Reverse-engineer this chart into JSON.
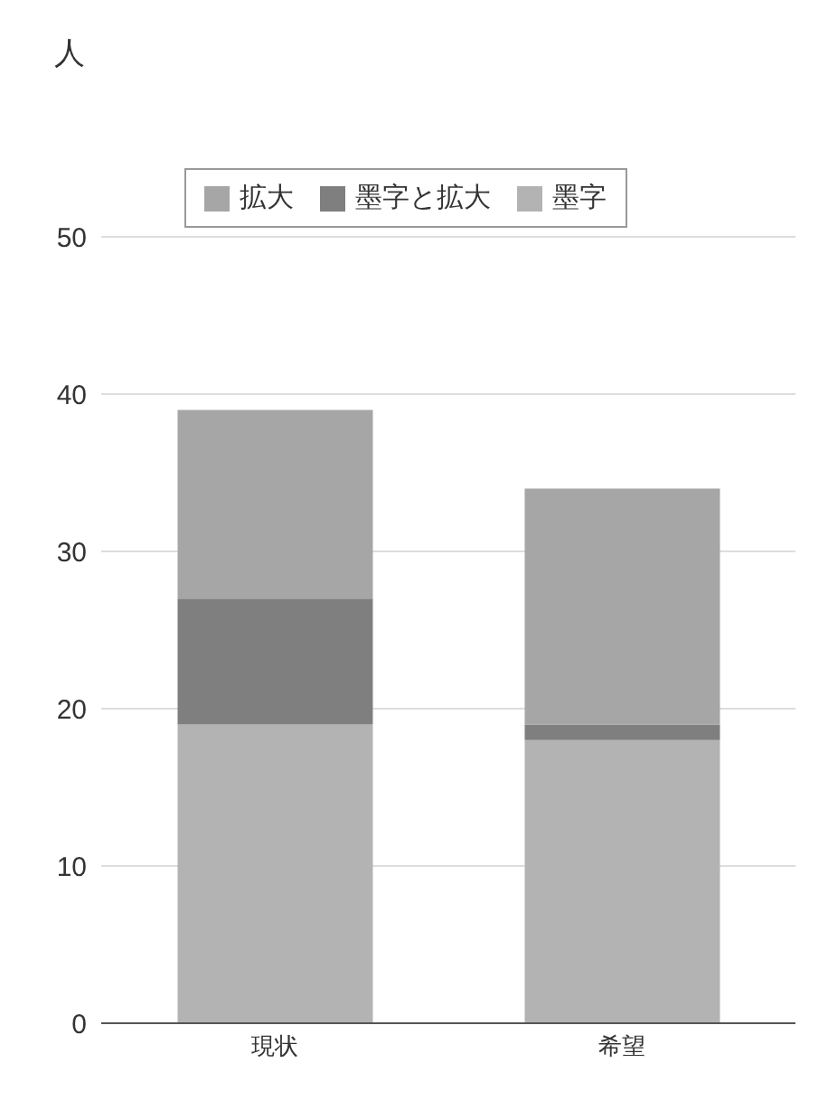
{
  "chart_data": {
    "type": "bar",
    "stacked": true,
    "ylabel": "人",
    "categories": [
      "現状",
      "希望"
    ],
    "series": [
      {
        "name": "墨字",
        "color": "#b3b3b3",
        "values": [
          19,
          18
        ]
      },
      {
        "name": "墨字と拡大",
        "color": "#7f7f7f",
        "values": [
          8,
          1
        ]
      },
      {
        "name": "拡大",
        "color": "#a6a6a6",
        "values": [
          12,
          15
        ]
      }
    ],
    "ylim": [
      0,
      50
    ],
    "yticks": [
      0,
      10,
      20,
      30,
      40,
      50
    ],
    "grid": "y",
    "legend": "top"
  }
}
